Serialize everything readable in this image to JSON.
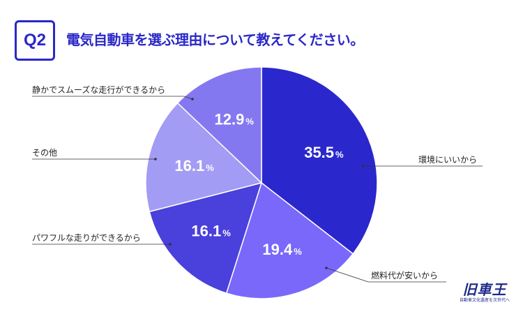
{
  "header": {
    "badge": "Q2",
    "question": "電気自動車を選ぶ理由について教えてください。"
  },
  "colors": {
    "accent": "#2a28c6",
    "slices": [
      "#2a28cc",
      "#7a68fa",
      "#4a40dc",
      "#a39cf4",
      "#8478f0"
    ]
  },
  "chart_data": {
    "type": "pie",
    "title": "電気自動車を選ぶ理由について教えてください。",
    "unit": "%",
    "slices": [
      {
        "label": "環境にいいから",
        "value": 35.5
      },
      {
        "label": "燃料代が安いから",
        "value": 19.4
      },
      {
        "label": "パワフルな走りができるから",
        "value": 16.1
      },
      {
        "label": "その他",
        "value": 16.1
      },
      {
        "label": "静かでスムーズな走行ができるから",
        "value": 12.9
      }
    ]
  },
  "brand": {
    "mark": "旧車王",
    "tagline": "自動車文化遺産を次世代へ"
  }
}
